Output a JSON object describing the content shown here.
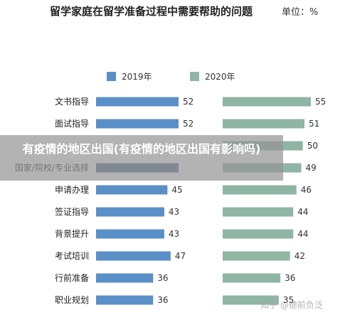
{
  "chart_data": {
    "type": "bar",
    "title": "留学家庭在留学准备过程中需要帮助的问题",
    "unit": "单位：%",
    "categories": [
      "文书指导",
      "面试指导",
      "",
      "国家/院校/专业选择",
      "申请办理",
      "签证指导",
      "背景提升",
      "考试培训",
      "行前准备",
      "职业规划"
    ],
    "series": [
      {
        "name": "2019年",
        "color": "#5b8fc7",
        "values": [
          52,
          52,
          null,
          null,
          45,
          43,
          43,
          47,
          36,
          36
        ]
      },
      {
        "name": "2020年",
        "color": "#8fb5a3",
        "values": [
          55,
          51,
          50,
          49,
          46,
          44,
          44,
          42,
          36,
          35
        ]
      }
    ],
    "bar_colors": {
      "2019": "#5b8fc7",
      "2019_partial": "#4a6690",
      "2020": "#8fb5a3"
    }
  },
  "overlay_text": "有疫情的地区出国(有疫情的地区出国有影响吗)",
  "watermark": "知乎 @德前负泛"
}
